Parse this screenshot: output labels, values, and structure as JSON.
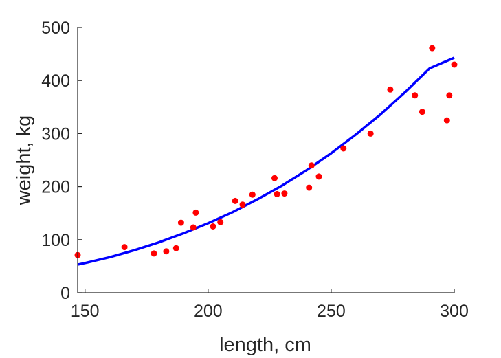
{
  "chart_data": {
    "type": "scatter",
    "title": "",
    "xlabel": "length, cm",
    "ylabel": "weight, kg",
    "xlim": [
      147,
      300
    ],
    "ylim": [
      0,
      500
    ],
    "xticks": [
      150,
      200,
      250,
      300
    ],
    "yticks": [
      0,
      100,
      200,
      300,
      400,
      500
    ],
    "grid": false,
    "legend": "none",
    "series": [
      {
        "kind": "points",
        "color": "#ff0000",
        "points": [
          [
            147,
            71
          ],
          [
            166,
            86
          ],
          [
            178,
            74
          ],
          [
            183,
            78
          ],
          [
            187,
            84
          ],
          [
            189,
            132
          ],
          [
            194,
            123
          ],
          [
            195,
            151
          ],
          [
            202,
            125
          ],
          [
            205,
            133
          ],
          [
            211,
            173
          ],
          [
            214,
            166
          ],
          [
            218,
            185
          ],
          [
            227,
            216
          ],
          [
            228,
            186
          ],
          [
            231,
            187
          ],
          [
            241,
            198
          ],
          [
            242,
            240
          ],
          [
            245,
            219
          ],
          [
            255,
            272
          ],
          [
            266,
            300
          ],
          [
            274,
            383
          ],
          [
            284,
            372
          ],
          [
            287,
            341
          ],
          [
            291,
            461
          ],
          [
            297,
            325
          ],
          [
            298,
            372
          ],
          [
            300,
            430
          ]
        ]
      },
      {
        "kind": "fit-curve",
        "color": "#0000ff",
        "x": [
          147,
          150,
          160,
          170,
          180,
          190,
          200,
          210,
          220,
          230,
          240,
          250,
          260,
          270,
          280,
          290,
          300
        ],
        "y": [
          53,
          56,
          67,
          80,
          95,
          112,
          131,
          152,
          176,
          202,
          231,
          263,
          298,
          336,
          378,
          423,
          443
        ]
      }
    ]
  }
}
